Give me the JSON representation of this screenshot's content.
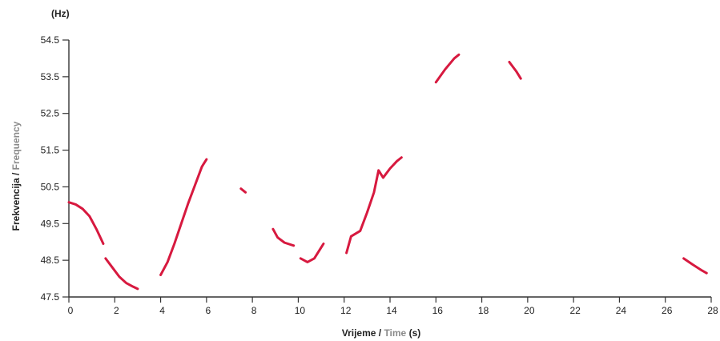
{
  "chart_data": {
    "type": "line",
    "title": "",
    "ylabel_unit": "(Hz)",
    "xlabel": {
      "primary": "Vrijeme / ",
      "secondary": "Time",
      "suffix": " (s)"
    },
    "ylabel": {
      "primary": "Frekvencija / ",
      "secondary": "Frequency"
    },
    "xlim": [
      0,
      28
    ],
    "ylim": [
      47.5,
      54.5
    ],
    "x_ticks": [
      0,
      2,
      4,
      6,
      8,
      10,
      12,
      14,
      16,
      18,
      20,
      22,
      24,
      26,
      28
    ],
    "y_ticks": [
      47.5,
      48.5,
      49.5,
      50.5,
      51.5,
      52.5,
      53.5,
      54.5
    ],
    "x_tick_labels": [
      "0",
      "2",
      "4",
      "6",
      "8",
      "10",
      "12",
      "14",
      "16",
      "18",
      "20",
      "22",
      "24",
      "26",
      "28"
    ],
    "y_tick_labels": [
      "47.5",
      "48.5",
      "49.5",
      "50.5",
      "51.5",
      "52.5",
      "53.5",
      "54.5"
    ],
    "grid": false,
    "colors": {
      "series": "#d7193f",
      "axis": "#333333",
      "label_secondary": "#8a8a8a"
    },
    "series": [
      {
        "values": [
          [
            0.0,
            50.08
          ],
          [
            0.3,
            50.02
          ],
          [
            0.6,
            49.9
          ],
          [
            0.9,
            49.7
          ],
          [
            1.2,
            49.35
          ],
          [
            1.5,
            48.95
          ]
        ]
      },
      {
        "values": [
          [
            1.6,
            48.55
          ],
          [
            1.9,
            48.3
          ],
          [
            2.2,
            48.05
          ],
          [
            2.5,
            47.88
          ],
          [
            2.8,
            47.78
          ],
          [
            3.0,
            47.72
          ]
        ]
      },
      {
        "values": [
          [
            4.0,
            48.1
          ],
          [
            4.3,
            48.45
          ],
          [
            4.6,
            48.95
          ],
          [
            4.9,
            49.5
          ],
          [
            5.2,
            50.05
          ],
          [
            5.5,
            50.55
          ],
          [
            5.8,
            51.05
          ],
          [
            6.0,
            51.25
          ]
        ]
      },
      {
        "values": [
          [
            7.5,
            50.45
          ],
          [
            7.7,
            50.35
          ]
        ]
      },
      {
        "values": [
          [
            8.9,
            49.35
          ],
          [
            9.1,
            49.12
          ],
          [
            9.4,
            48.98
          ],
          [
            9.8,
            48.9
          ]
        ]
      },
      {
        "values": [
          [
            10.1,
            48.55
          ],
          [
            10.4,
            48.45
          ],
          [
            10.7,
            48.55
          ],
          [
            11.0,
            48.85
          ],
          [
            11.1,
            48.95
          ]
        ]
      },
      {
        "values": [
          [
            12.1,
            48.7
          ],
          [
            12.3,
            49.15
          ],
          [
            12.7,
            49.3
          ],
          [
            13.0,
            49.8
          ],
          [
            13.3,
            50.35
          ],
          [
            13.5,
            50.95
          ],
          [
            13.7,
            50.75
          ],
          [
            14.0,
            51.0
          ],
          [
            14.3,
            51.2
          ],
          [
            14.5,
            51.3
          ]
        ]
      },
      {
        "values": [
          [
            16.0,
            53.35
          ],
          [
            16.4,
            53.7
          ],
          [
            16.8,
            54.0
          ],
          [
            17.0,
            54.1
          ]
        ]
      },
      {
        "values": [
          [
            19.2,
            53.9
          ],
          [
            19.5,
            53.65
          ],
          [
            19.7,
            53.45
          ]
        ]
      },
      {
        "values": [
          [
            26.8,
            48.55
          ],
          [
            27.2,
            48.38
          ],
          [
            27.6,
            48.22
          ],
          [
            27.8,
            48.15
          ]
        ]
      }
    ]
  }
}
